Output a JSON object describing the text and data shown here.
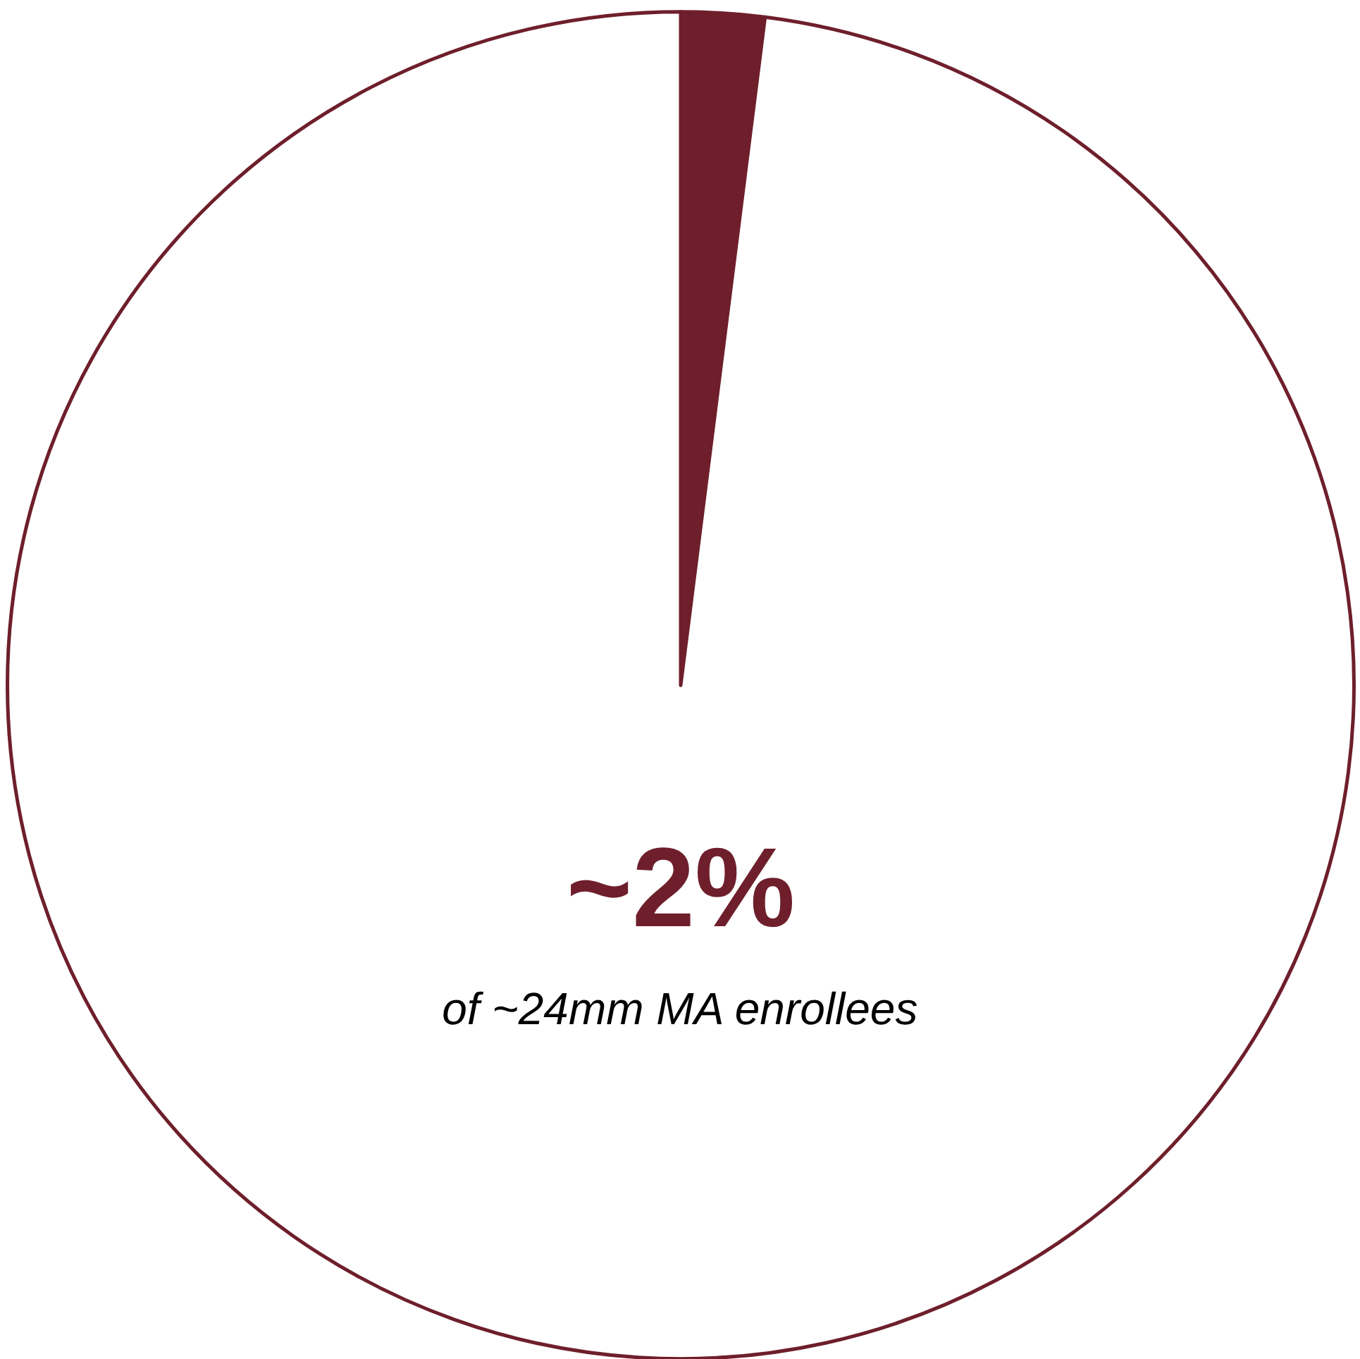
{
  "chart_data": {
    "type": "pie",
    "categories": [
      null,
      null
    ],
    "values": [
      2,
      98
    ],
    "colors": [
      "#6e1f2b",
      "#ffffff"
    ],
    "annotations": [
      "~2%",
      "of ~24mm MA enrollees"
    ]
  }
}
